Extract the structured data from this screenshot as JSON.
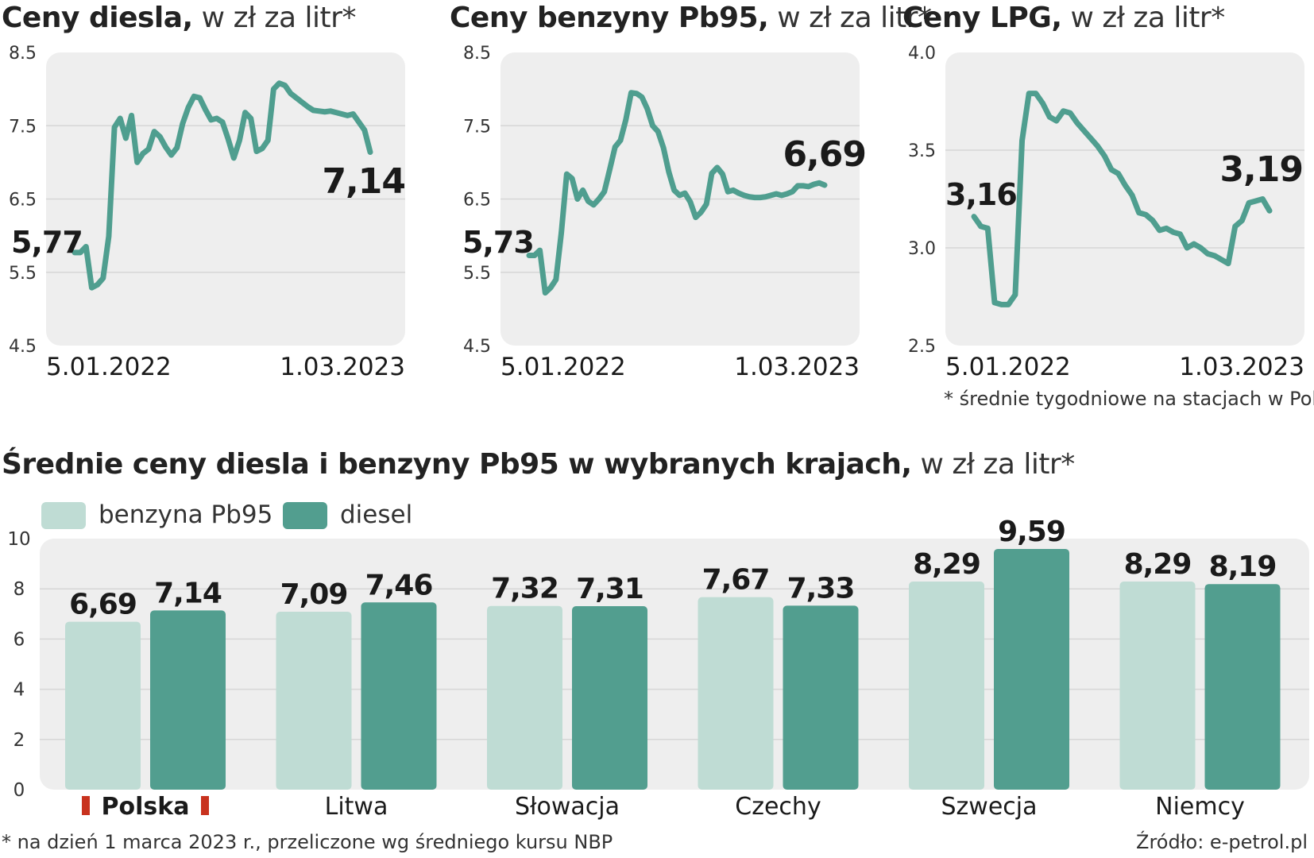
{
  "colors": {
    "line": "#4f9e8f",
    "petrol": "#bfdcd4",
    "diesel": "#529e8f",
    "panel_bg": "#eeeeee",
    "grid": "#d6d6d6",
    "poland_flag": "#c8321e"
  },
  "panels": [
    {
      "title_bold": "Ceny diesla,",
      "title_rest": " w zł za litr*"
    },
    {
      "title_bold": "Ceny benzyny Pb95,",
      "title_rest": " w zł za litr*"
    },
    {
      "title_bold": "Ceny LPG,",
      "title_rest": " w zł za litr*"
    }
  ],
  "footnote_weekly": "* średnie tygodniowe na stacjach w Polsce",
  "bar_section": {
    "title_bold": "Średnie ceny diesla i benzyny Pb95 w wybranych krajach,",
    "title_rest": " w zł za litr*"
  },
  "footnote_nbp": "* na dzień 1 marca 2023 r., przeliczone wg średniego kursu NBP",
  "source": "Źródło: e-petrol.pl",
  "chart_data": [
    {
      "type": "line",
      "title": "Ceny diesla, w zł za litr*",
      "yticks": [
        "8.5",
        "7.5",
        "6.5",
        "5.5",
        "4.5"
      ],
      "ylim": [
        4.5,
        8.5
      ],
      "xlabels": [
        "5.01.2022",
        "1.03.2023"
      ],
      "start_label": "5,77",
      "end_label": "7,14",
      "grid": true,
      "values": [
        5.77,
        5.77,
        5.85,
        5.29,
        5.33,
        5.42,
        5.99,
        7.48,
        7.6,
        7.33,
        7.64,
        7.0,
        7.12,
        7.18,
        7.42,
        7.35,
        7.21,
        7.1,
        7.2,
        7.53,
        7.75,
        7.9,
        7.88,
        7.72,
        7.58,
        7.6,
        7.55,
        7.32,
        7.06,
        7.3,
        7.68,
        7.6,
        7.15,
        7.19,
        7.3,
        8.0,
        8.08,
        8.05,
        7.94,
        7.88,
        7.82,
        7.76,
        7.71,
        7.7,
        7.69,
        7.7,
        7.68,
        7.66,
        7.64,
        7.66,
        7.55,
        7.44,
        7.14
      ]
    },
    {
      "type": "line",
      "title": "Ceny benzyny Pb95, w zł za litr*",
      "yticks": [
        "8.5",
        "7.5",
        "6.5",
        "5.5",
        "4.5"
      ],
      "ylim": [
        4.5,
        8.5
      ],
      "xlabels": [
        "5.01.2022",
        "1.03.2023"
      ],
      "start_label": "5,73",
      "end_label": "6,69",
      "grid": true,
      "values": [
        5.73,
        5.73,
        5.8,
        5.22,
        5.29,
        5.4,
        6.04,
        6.84,
        6.78,
        6.5,
        6.62,
        6.47,
        6.42,
        6.5,
        6.6,
        6.9,
        7.21,
        7.3,
        7.58,
        7.95,
        7.94,
        7.89,
        7.73,
        7.5,
        7.42,
        7.2,
        6.87,
        6.62,
        6.55,
        6.58,
        6.46,
        6.25,
        6.32,
        6.43,
        6.85,
        6.93,
        6.84,
        6.6,
        6.62,
        6.58,
        6.55,
        6.53,
        6.52,
        6.52,
        6.53,
        6.55,
        6.57,
        6.55,
        6.57,
        6.6,
        6.68,
        6.68,
        6.67,
        6.7,
        6.72,
        6.69
      ]
    },
    {
      "type": "line",
      "title": "Ceny LPG, w zł za litr*",
      "yticks": [
        "4.0",
        "3.5",
        "3.0",
        "2.5"
      ],
      "ylim": [
        2.5,
        4.0
      ],
      "xlabels": [
        "5.01.2022",
        "1.03.2023"
      ],
      "start_label": "3,16",
      "end_label": "3,19",
      "grid": true,
      "values": [
        3.16,
        3.11,
        3.1,
        2.72,
        2.71,
        2.71,
        2.76,
        3.55,
        3.79,
        3.79,
        3.74,
        3.67,
        3.65,
        3.7,
        3.69,
        3.64,
        3.6,
        3.56,
        3.52,
        3.47,
        3.4,
        3.38,
        3.32,
        3.27,
        3.18,
        3.17,
        3.14,
        3.09,
        3.1,
        3.08,
        3.07,
        3.0,
        3.02,
        3.0,
        2.97,
        2.96,
        2.94,
        2.92,
        3.11,
        3.14,
        3.23,
        3.24,
        3.25,
        3.19
      ]
    },
    {
      "type": "bar",
      "title": "Średnie ceny diesla i benzyny Pb95 w wybranych krajach, w zł za litr*",
      "categories": [
        "Polska",
        "Litwa",
        "Słowacja",
        "Czechy",
        "Szwecja",
        "Niemcy"
      ],
      "ylim": [
        0,
        10
      ],
      "yticks": [
        "10",
        "8",
        "6",
        "4",
        "2",
        "0"
      ],
      "legend_position": "top-left",
      "grid": true,
      "series": [
        {
          "name": "benzyna Pb95",
          "values": [
            6.69,
            7.09,
            7.32,
            7.67,
            8.29,
            8.29
          ],
          "labels": [
            "6,69",
            "7,09",
            "7,32",
            "7,67",
            "8,29",
            "8,29"
          ]
        },
        {
          "name": "diesel",
          "values": [
            7.14,
            7.46,
            7.31,
            7.33,
            9.59,
            8.19
          ],
          "labels": [
            "7,14",
            "7,46",
            "7,31",
            "7,33",
            "9,59",
            "8,19"
          ]
        }
      ]
    }
  ]
}
